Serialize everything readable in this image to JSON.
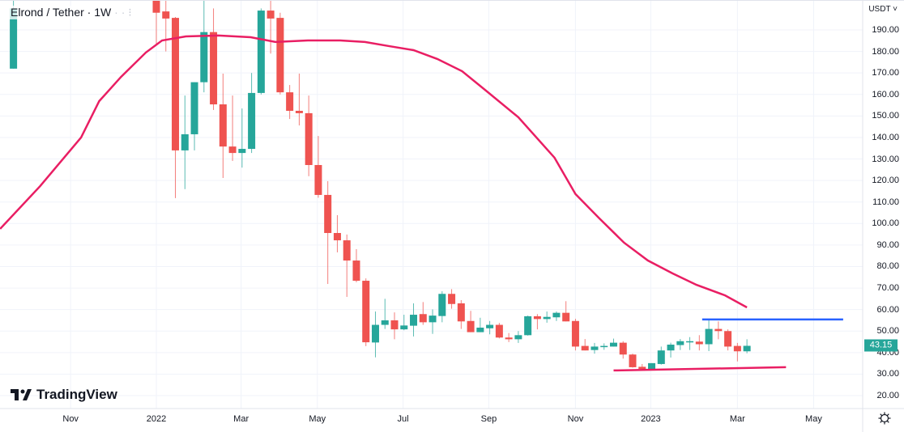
{
  "header": {
    "symbol": "Elrond / Tether",
    "interval": "1W",
    "separator": " · ",
    "faded_suffix": "· ·  ⁝"
  },
  "price_axis": {
    "currency": "USDT ˅",
    "labels": [
      "190.00",
      "180.00",
      "170.00",
      "160.00",
      "150.00",
      "140.00",
      "130.00",
      "120.00",
      "110.00",
      "100.00",
      "90.00",
      "80.00",
      "70.00",
      "60.00",
      "50.00",
      "40.00",
      "30.00",
      "20.00"
    ],
    "values": [
      190,
      180,
      170,
      160,
      150,
      140,
      130,
      120,
      110,
      100,
      90,
      80,
      70,
      60,
      50,
      40,
      30,
      20
    ],
    "last_price": "43.15",
    "last_value": 43.15
  },
  "time_axis": {
    "labels": [
      {
        "text": "Nov",
        "week": -9.0
      },
      {
        "text": "2022",
        "week": 0
      },
      {
        "text": "Mar",
        "week": 8.9
      },
      {
        "text": "May",
        "week": 16.9
      },
      {
        "text": "Jul",
        "week": 25.9
      },
      {
        "text": "Sep",
        "week": 34.9
      },
      {
        "text": "Nov",
        "week": 44.0
      },
      {
        "text": "2023",
        "week": 51.9
      },
      {
        "text": "Mar",
        "week": 61.0
      },
      {
        "text": "May",
        "week": 69.0
      }
    ]
  },
  "brand": {
    "name": "TradingView"
  },
  "colors": {
    "up": "#26a69a",
    "down": "#ef5350",
    "ma": "#e91e63",
    "resistance": "#2962ff",
    "support": "#e91e63",
    "grid": "#f0f3fa"
  },
  "chart_data": {
    "type": "candlestick",
    "x_unit": "week index (0 = first week of 2022)",
    "candles": [
      [
        -15,
        172,
        205,
        172,
        200
      ],
      [
        0,
        205,
        210,
        183,
        198
      ],
      [
        1,
        198.6,
        205,
        180,
        195.3
      ],
      [
        2,
        195.6,
        196,
        111.8,
        134
      ],
      [
        3,
        134,
        159.5,
        116,
        141.5
      ],
      [
        4,
        141.5,
        165.7,
        134,
        165.7
      ],
      [
        5,
        165.7,
        204,
        161,
        189
      ],
      [
        6,
        189,
        200,
        152.8,
        155.4
      ],
      [
        7,
        155.4,
        169.7,
        121.2,
        135.8
      ],
      [
        8,
        135.8,
        159.5,
        129.1,
        132.8
      ],
      [
        9,
        132.8,
        153.5,
        126,
        134.7
      ],
      [
        10,
        134.7,
        170,
        132.8,
        160.7
      ],
      [
        11,
        160.7,
        200,
        160,
        199
      ],
      [
        12,
        199,
        204,
        179,
        195.3
      ],
      [
        13,
        195.6,
        198,
        160,
        161
      ],
      [
        14,
        161,
        164.4,
        148.6,
        152.4
      ],
      [
        15,
        152.4,
        169.7,
        145.6,
        151.3
      ],
      [
        16,
        151.3,
        159.5,
        122,
        127.2
      ],
      [
        17,
        127.2,
        140.7,
        112,
        113.3
      ],
      [
        18,
        113.3,
        119.7,
        71.9,
        95.6
      ],
      [
        19,
        95.6,
        103.9,
        86.6,
        92.2
      ],
      [
        20,
        92.2,
        94.9,
        65.9,
        82.8
      ],
      [
        21,
        82.8,
        88.1,
        72.7,
        73.4
      ],
      [
        22,
        73.4,
        74.5,
        43,
        44.8
      ],
      [
        23,
        44.7,
        59.1,
        37.8,
        52.9
      ],
      [
        24,
        52.9,
        65,
        51,
        55
      ],
      [
        25,
        55,
        58.7,
        46.2,
        50.8
      ],
      [
        26,
        50.8,
        57.6,
        50.4,
        52.6
      ],
      [
        27,
        52.5,
        62.9,
        47.5,
        57.6
      ],
      [
        28,
        57.9,
        63.5,
        52.9,
        54.1
      ],
      [
        29,
        54.1,
        60.1,
        48.7,
        57.2
      ],
      [
        30,
        57,
        68.5,
        54.1,
        67.3
      ],
      [
        31,
        67.3,
        69.5,
        60.4,
        62.6
      ],
      [
        32,
        62.9,
        64.4,
        51,
        54.5
      ],
      [
        33,
        54.7,
        59.4,
        49.5,
        49.5
      ],
      [
        34,
        49.5,
        56.2,
        49.5,
        51.6
      ],
      [
        35,
        51.3,
        54.7,
        48.5,
        52.9
      ],
      [
        36,
        52.9,
        53.8,
        46.6,
        47
      ],
      [
        37,
        47,
        49.1,
        44.9,
        46.2
      ],
      [
        38,
        46.2,
        50,
        44.5,
        48.1
      ],
      [
        39,
        48.1,
        57.2,
        47.9,
        56.9
      ],
      [
        40,
        56.9,
        57.9,
        50.8,
        55.6
      ],
      [
        41,
        55.6,
        59.1,
        53.9,
        56.6
      ],
      [
        42,
        56.4,
        59.1,
        54.7,
        58.5
      ],
      [
        43,
        58.5,
        63.9,
        54.5,
        54.5
      ],
      [
        44,
        54.7,
        55.7,
        41,
        42.8
      ],
      [
        45,
        43.1,
        46.3,
        41,
        41
      ],
      [
        46,
        41.2,
        44.5,
        39.5,
        42.8
      ],
      [
        47,
        42.8,
        44.3,
        41.3,
        43.1
      ],
      [
        48,
        42.8,
        46.5,
        42.8,
        44.6
      ],
      [
        49,
        44.6,
        45.3,
        37.2,
        39.1
      ],
      [
        50,
        39.1,
        39.5,
        33,
        33.2
      ],
      [
        51,
        33.4,
        34.7,
        32.4,
        32.4
      ],
      [
        52,
        32.4,
        35.1,
        32.4,
        35.1
      ],
      [
        53,
        34.7,
        42.8,
        34.4,
        41
      ],
      [
        54,
        41,
        44.6,
        37.7,
        43.7
      ],
      [
        55,
        43.5,
        46.3,
        41.2,
        45.3
      ],
      [
        56,
        45.2,
        47.2,
        41.2,
        45.3
      ],
      [
        57,
        45.1,
        48.1,
        41,
        43.9
      ],
      [
        58,
        43.9,
        55.4,
        40.7,
        51
      ],
      [
        59,
        51,
        54.5,
        46.2,
        50
      ],
      [
        60,
        50,
        50.8,
        41,
        42.8
      ],
      [
        61,
        43.1,
        44.5,
        35.9,
        40.6
      ],
      [
        62,
        40.6,
        46.2,
        39.7,
        43.15
      ]
    ],
    "candle_fields": [
      "week",
      "open",
      "high",
      "low",
      "close"
    ],
    "moving_average": [
      [
        -16.4,
        97.5
      ],
      [
        -12.2,
        117.4
      ],
      [
        -7.9,
        140
      ],
      [
        -6,
        156.9
      ],
      [
        -3.7,
        168.2
      ],
      [
        -1.1,
        179.5
      ],
      [
        0.6,
        185.1
      ],
      [
        3.1,
        187
      ],
      [
        6.5,
        187.4
      ],
      [
        9.9,
        186.6
      ],
      [
        12.5,
        184.4
      ],
      [
        15.9,
        185.1
      ],
      [
        19.3,
        185.1
      ],
      [
        21.9,
        184.4
      ],
      [
        24.4,
        182.5
      ],
      [
        27,
        180.6
      ],
      [
        29.5,
        176.5
      ],
      [
        32.1,
        170.8
      ],
      [
        34.6,
        161.8
      ],
      [
        38,
        149.4
      ],
      [
        41.8,
        130.6
      ],
      [
        44,
        113.7
      ],
      [
        46.5,
        102.4
      ],
      [
        49.1,
        91.1
      ],
      [
        51.6,
        82.8
      ],
      [
        54.2,
        76.8
      ],
      [
        56.7,
        71.5
      ],
      [
        59.7,
        66.6
      ],
      [
        62,
        61
      ]
    ],
    "drawings": [
      {
        "name": "resistance-line",
        "from": [
          57.3,
          55.4
        ],
        "to": [
          72.1,
          55.4
        ]
      },
      {
        "name": "support-line",
        "from": [
          48,
          31.7
        ],
        "to": [
          66.1,
          33.2
        ]
      }
    ],
    "ylim": [
      14,
      204
    ]
  }
}
